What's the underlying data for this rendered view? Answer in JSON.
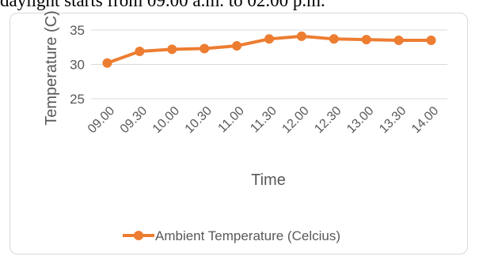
{
  "top_text": "daylight starts from 09.00 a.m. to 02.00 p.m.",
  "chart_data": {
    "type": "line",
    "xlabel": "Time",
    "ylabel": "Temperature (C)",
    "categories": [
      "09.00",
      "09.30",
      "10.00",
      "10.30",
      "11.00",
      "11.30",
      "12.00",
      "12.30",
      "13.00",
      "13.30",
      "14.00"
    ],
    "series": [
      {
        "name": "Ambient Temperature (Celcius)",
        "values": [
          30.2,
          31.9,
          32.2,
          32.3,
          32.7,
          33.7,
          34.1,
          33.7,
          33.6,
          33.5,
          33.5
        ],
        "color": "#ed7d31"
      }
    ],
    "ylim": [
      25,
      35
    ],
    "yticks": [
      25,
      30,
      35
    ],
    "grid": true,
    "legend_position": "bottom"
  }
}
